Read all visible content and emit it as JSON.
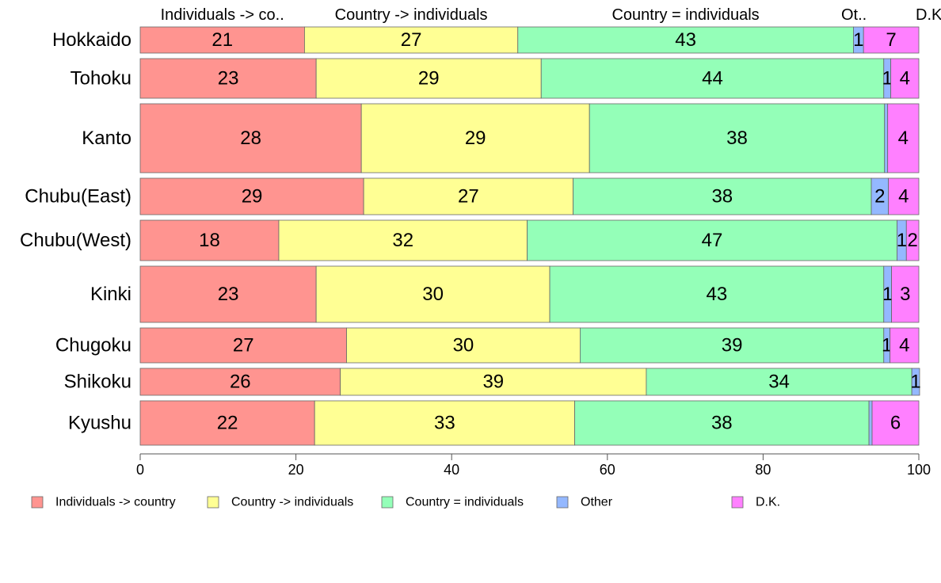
{
  "chart_data": {
    "type": "bar",
    "orientation": "horizontal",
    "stacked": true,
    "categories": [
      "Hokkaido",
      "Tohoku",
      "Kanto",
      "Chubu(East)",
      "Chubu(West)",
      "Kinki",
      "Chugoku",
      "Shikoku",
      "Kyushu"
    ],
    "row_weights": [
      3.3,
      5.0,
      8.7,
      4.6,
      5.1,
      7.1,
      4.4,
      3.4,
      5.6
    ],
    "series": [
      {
        "name": "Individuals -> country",
        "color": "#ff9490",
        "values": [
          21.1,
          22.6,
          28.4,
          28.7,
          17.8,
          22.6,
          26.5,
          25.7,
          22.4
        ]
      },
      {
        "name": "Country -> individuals",
        "color": "#ffff94",
        "values": [
          27.4,
          28.9,
          29.3,
          26.9,
          31.9,
          30.0,
          30.0,
          39.3,
          33.4
        ]
      },
      {
        "name": "Country = individuals",
        "color": "#94ffb8",
        "values": [
          43.1,
          44.0,
          37.9,
          38.3,
          47.5,
          42.9,
          39.0,
          34.1,
          37.8
        ]
      },
      {
        "name": "Other",
        "color": "#94b8ff",
        "values": [
          1.3,
          0.9,
          0.4,
          2.2,
          1.2,
          1.0,
          0.8,
          1.0,
          0.4
        ]
      },
      {
        "name": "D.K.",
        "color": "#ff80ff",
        "values": [
          7.1,
          3.6,
          4.0,
          3.9,
          1.6,
          3.5,
          3.7,
          0.0,
          6.0
        ]
      }
    ],
    "data_labels": [
      [
        "21",
        "27",
        "43",
        "1",
        "7"
      ],
      [
        "23",
        "29",
        "44",
        "1",
        "4"
      ],
      [
        "28",
        "29",
        "38",
        "",
        "4"
      ],
      [
        "29",
        "27",
        "38",
        "2",
        "4"
      ],
      [
        "18",
        "32",
        "47",
        "1",
        "2"
      ],
      [
        "23",
        "30",
        "43",
        "1",
        "3"
      ],
      [
        "27",
        "30",
        "39",
        "1",
        "4"
      ],
      [
        "26",
        "39",
        "34",
        "1",
        ""
      ],
      [
        "22",
        "33",
        "38",
        "",
        "6"
      ]
    ],
    "column_headers": [
      "Individuals -> co..",
      "Country -> individuals",
      "Country = individuals",
      "Ot..",
      "D.K."
    ],
    "xlim": [
      0,
      100
    ],
    "xticks": [
      0,
      20,
      40,
      60,
      80,
      100
    ],
    "xlabel": "",
    "ylabel": "",
    "title": "",
    "grid": false,
    "legend_position": "bottom"
  }
}
